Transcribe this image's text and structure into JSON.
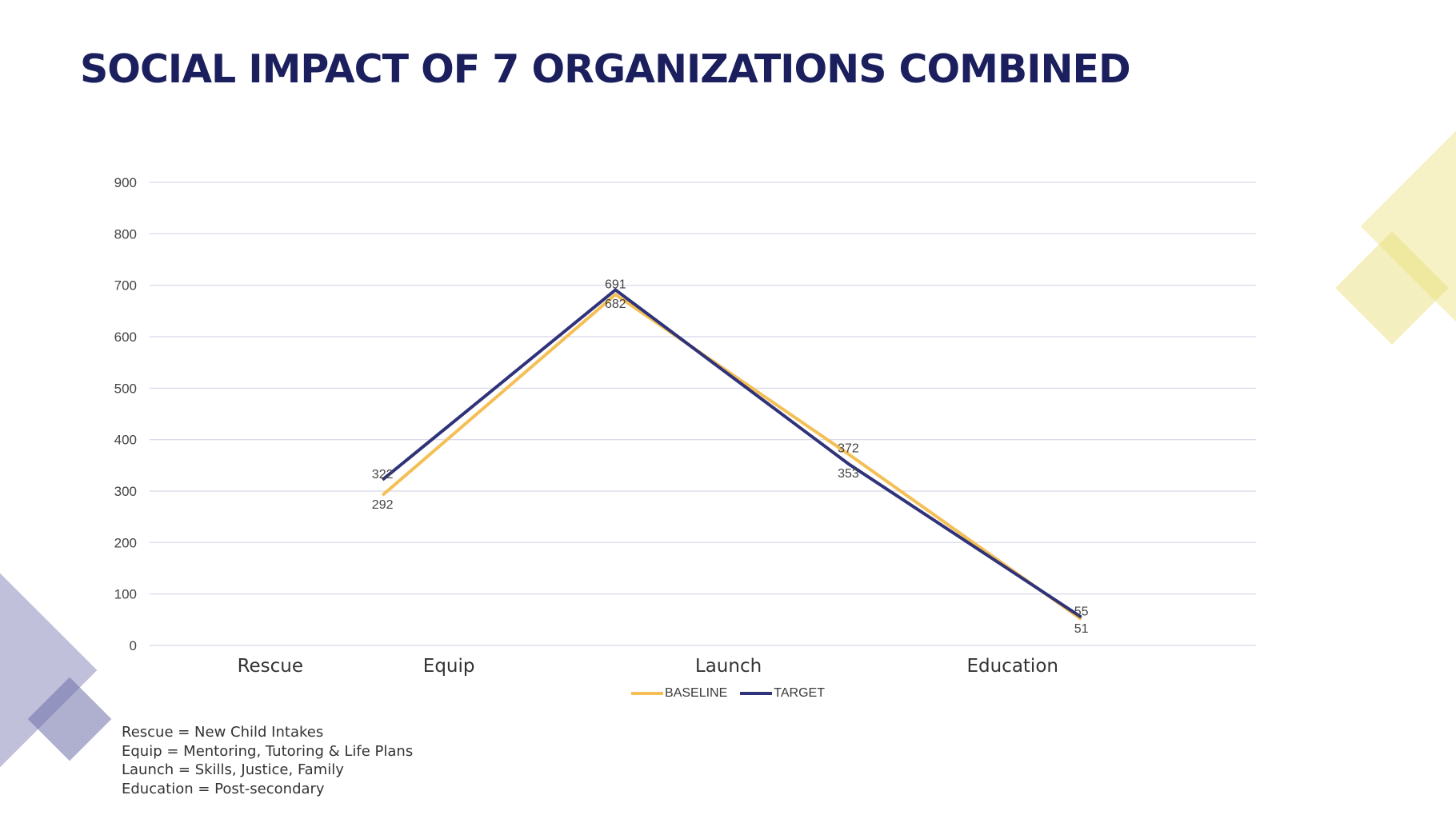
{
  "title": "SOCIAL IMPACT OF 7 ORGANIZATIONS COMBINED",
  "colors": {
    "baseline": "#f4bf55",
    "target": "#2f337a",
    "title": "#1b1f5e",
    "grid": "#d6d6ea",
    "deco_yellow": "#f1eaa6",
    "deco_purple": "#9d9dc8"
  },
  "chart_data": {
    "type": "line",
    "x": [
      1,
      2,
      3,
      4
    ],
    "categories": [
      "Rescue",
      "Equip",
      "Launch",
      "Education"
    ],
    "xlim": [
      0,
      4.75
    ],
    "series": [
      {
        "name": "BASELINE",
        "values": [
          292,
          682,
          372,
          51
        ]
      },
      {
        "name": "TARGET",
        "values": [
          322,
          691,
          353,
          55
        ]
      }
    ],
    "ylim": [
      0,
      900
    ],
    "yticks": [
      0,
      100,
      200,
      300,
      400,
      500,
      600,
      700,
      800,
      900
    ],
    "category_label_positions": [
      0.518,
      1.285,
      2.485,
      3.705
    ],
    "grid": true,
    "legend_position": "bottom",
    "data_labels": true
  },
  "notes": [
    "Rescue = New Child Intakes",
    "Equip = Mentoring, Tutoring & Life Plans",
    "Launch = Skills, Justice, Family",
    "Education = Post-secondary"
  ]
}
